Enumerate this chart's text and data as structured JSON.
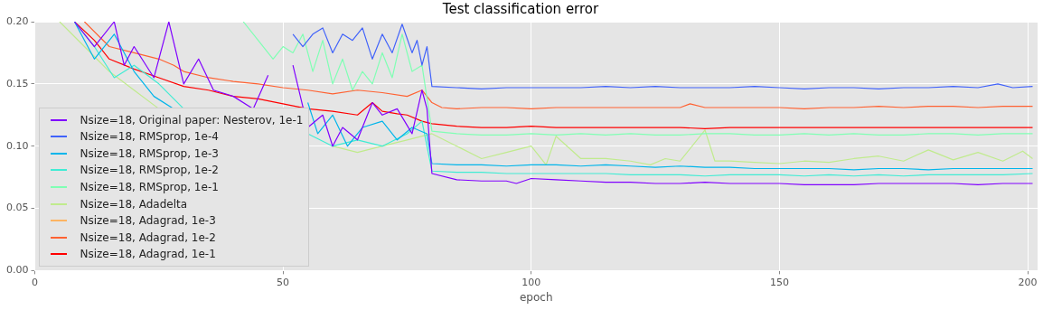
{
  "chart_data": {
    "type": "line",
    "title": "Test classification error",
    "xlabel": "epoch",
    "xlim": [
      0,
      202
    ],
    "xticks": [
      0,
      50,
      100,
      150,
      200
    ],
    "ylim": [
      0,
      0.2
    ],
    "yticks": [
      {
        "value": 0,
        "label": "0.00"
      },
      {
        "value": 0.05,
        "label": "0.05"
      },
      {
        "value": 0.1,
        "label": "0.10"
      },
      {
        "value": 0.15,
        "label": "0.15"
      },
      {
        "value": 0.2,
        "label": "0.20"
      }
    ],
    "grid": true,
    "legend": "left",
    "series": [
      {
        "name": "Nsize=18, Original paper: Nesterov, 1e-1",
        "color": "#8000ff",
        "x": [
          8,
          12,
          16,
          18,
          20,
          24,
          27,
          30,
          33,
          36,
          40,
          44,
          47,
          50,
          52,
          55,
          58,
          60,
          62,
          65,
          68,
          70,
          73,
          76,
          78,
          79,
          80,
          85,
          90,
          95,
          97,
          100,
          105,
          110,
          115,
          120,
          125,
          130,
          135,
          140,
          145,
          150,
          155,
          160,
          165,
          170,
          175,
          180,
          185,
          190,
          195,
          201
        ],
        "values": [
          0.2,
          0.18,
          0.2,
          0.165,
          0.18,
          0.155,
          0.2,
          0.15,
          0.17,
          0.145,
          0.14,
          0.13,
          0.157,
          null,
          0.165,
          0.115,
          0.125,
          0.1,
          0.115,
          0.105,
          0.135,
          0.125,
          0.13,
          0.11,
          0.145,
          0.13,
          0.078,
          0.073,
          0.072,
          0.072,
          0.07,
          0.074,
          0.073,
          0.072,
          0.071,
          0.071,
          0.07,
          0.07,
          0.071,
          0.07,
          0.07,
          0.07,
          0.069,
          0.069,
          0.069,
          0.07,
          0.07,
          0.07,
          0.07,
          0.069,
          0.07,
          0.07
        ]
      },
      {
        "name": "Nsize=18, RMSprop, 1e-4",
        "color": "#4062fa",
        "x": [
          52,
          54,
          56,
          58,
          60,
          62,
          64,
          66,
          68,
          70,
          72,
          74,
          76,
          77,
          78,
          79,
          80,
          85,
          90,
          95,
          100,
          105,
          110,
          115,
          120,
          125,
          130,
          135,
          140,
          145,
          150,
          155,
          160,
          165,
          170,
          175,
          180,
          185,
          190,
          194,
          197,
          201
        ],
        "values": [
          0.19,
          0.18,
          0.19,
          0.195,
          0.175,
          0.19,
          0.185,
          0.195,
          0.17,
          0.19,
          0.175,
          0.198,
          0.175,
          0.185,
          0.165,
          0.18,
          0.148,
          0.147,
          0.146,
          0.147,
          0.147,
          0.147,
          0.147,
          0.148,
          0.147,
          0.148,
          0.147,
          0.147,
          0.147,
          0.148,
          0.147,
          0.146,
          0.147,
          0.147,
          0.146,
          0.147,
          0.147,
          0.148,
          0.147,
          0.15,
          0.147,
          0.148
        ]
      },
      {
        "name": "Nsize=18, RMSprop, 1e-3",
        "color": "#00b5eb",
        "x": [
          8,
          12,
          16,
          20,
          24,
          28,
          30,
          35,
          40,
          45,
          50,
          52,
          55,
          57,
          60,
          63,
          66,
          70,
          73,
          76,
          79,
          80,
          85,
          90,
          95,
          100,
          105,
          110,
          115,
          120,
          125,
          130,
          135,
          140,
          145,
          150,
          155,
          160,
          165,
          170,
          175,
          180,
          185,
          190,
          195,
          201
        ],
        "values": [
          0.2,
          0.17,
          0.19,
          0.16,
          0.14,
          0.13,
          null,
          null,
          null,
          null,
          null,
          null,
          0.135,
          0.11,
          0.125,
          0.1,
          0.115,
          0.12,
          0.105,
          0.115,
          0.11,
          0.086,
          0.085,
          0.085,
          0.084,
          0.085,
          0.085,
          0.084,
          0.085,
          0.084,
          0.083,
          0.084,
          0.083,
          0.083,
          0.082,
          0.082,
          0.082,
          0.082,
          0.081,
          0.082,
          0.082,
          0.081,
          0.082,
          0.082,
          0.082,
          0.082
        ]
      },
      {
        "name": "Nsize=18, RMSprop, 1e-2",
        "color": "#40ecd4",
        "x": [
          8,
          12,
          16,
          20,
          25,
          30,
          35,
          40,
          45,
          50,
          55,
          60,
          65,
          70,
          75,
          78,
          80,
          85,
          90,
          95,
          100,
          105,
          110,
          115,
          120,
          125,
          130,
          135,
          140,
          145,
          150,
          155,
          160,
          165,
          170,
          175,
          180,
          185,
          190,
          195,
          201
        ],
        "values": [
          0.2,
          0.18,
          0.155,
          0.165,
          0.15,
          0.13,
          null,
          null,
          null,
          null,
          0.11,
          0.1,
          0.105,
          0.1,
          0.11,
          0.12,
          0.08,
          0.079,
          0.079,
          0.078,
          0.078,
          0.078,
          0.078,
          0.078,
          0.077,
          0.077,
          0.077,
          0.076,
          0.077,
          0.077,
          0.077,
          0.076,
          0.077,
          0.076,
          0.077,
          0.076,
          0.077,
          0.077,
          0.077,
          0.077,
          0.078
        ]
      },
      {
        "name": "Nsize=18, RMSprop, 1e-1",
        "color": "#80ffb4",
        "x": [
          42,
          45,
          48,
          50,
          52,
          54,
          56,
          58,
          60,
          62,
          64,
          66,
          68,
          70,
          72,
          74,
          76,
          78,
          80,
          85,
          90,
          95,
          100,
          105,
          110,
          115,
          120,
          125,
          130,
          135,
          140,
          145,
          150,
          155,
          160,
          165,
          170,
          175,
          180,
          185,
          190,
          195,
          201
        ],
        "values": [
          0.2,
          0.185,
          0.17,
          0.18,
          0.175,
          0.19,
          0.16,
          0.185,
          0.15,
          0.17,
          0.145,
          0.16,
          0.15,
          0.175,
          0.155,
          0.19,
          0.16,
          0.165,
          0.112,
          0.11,
          0.109,
          0.109,
          0.11,
          0.109,
          0.11,
          0.109,
          0.11,
          0.109,
          0.109,
          0.11,
          0.11,
          0.109,
          0.109,
          0.11,
          0.109,
          0.11,
          0.109,
          0.109,
          0.11,
          0.11,
          0.109,
          0.11,
          0.11
        ]
      },
      {
        "name": "Nsize=18, Adadelta",
        "color": "#c0eb8d",
        "x": [
          5,
          10,
          15,
          20,
          25,
          30,
          40,
          50,
          55,
          60,
          65,
          70,
          75,
          80,
          85,
          90,
          95,
          100,
          103,
          105,
          110,
          115,
          120,
          124,
          127,
          130,
          135,
          137,
          140,
          145,
          150,
          155,
          160,
          165,
          170,
          175,
          180,
          185,
          190,
          195,
          199,
          201
        ],
        "values": [
          0.2,
          0.18,
          0.16,
          0.145,
          0.13,
          null,
          null,
          null,
          null,
          0.1,
          0.095,
          0.1,
          0.105,
          0.11,
          0.1,
          0.09,
          0.095,
          0.1,
          0.085,
          0.108,
          0.09,
          0.09,
          0.088,
          0.085,
          0.09,
          0.088,
          0.113,
          0.088,
          0.088,
          0.087,
          0.086,
          0.088,
          0.087,
          0.09,
          0.092,
          0.088,
          0.097,
          0.089,
          0.095,
          0.088,
          0.096,
          0.09
        ]
      },
      {
        "name": "Nsize=18, Adagrad, 1e-3",
        "color": "#ffb462"
      },
      {
        "name": "Nsize=18, Adagrad, 1e-2",
        "color": "#ff6232",
        "x": [
          10,
          15,
          20,
          25,
          28,
          30,
          35,
          40,
          45,
          50,
          55,
          60,
          65,
          70,
          75,
          78,
          80,
          82,
          85,
          90,
          95,
          100,
          105,
          110,
          115,
          120,
          125,
          130,
          132,
          135,
          140,
          145,
          150,
          155,
          160,
          165,
          170,
          175,
          180,
          185,
          190,
          195,
          201
        ],
        "values": [
          0.2,
          0.18,
          0.175,
          0.17,
          0.165,
          0.16,
          0.155,
          0.152,
          0.15,
          0.147,
          0.145,
          0.142,
          0.145,
          0.143,
          0.14,
          0.145,
          0.135,
          0.131,
          0.13,
          0.131,
          0.131,
          0.13,
          0.131,
          0.131,
          0.131,
          0.131,
          0.131,
          0.131,
          0.134,
          0.131,
          0.131,
          0.131,
          0.131,
          0.13,
          0.131,
          0.131,
          0.132,
          0.131,
          0.132,
          0.132,
          0.131,
          0.132,
          0.132
        ]
      },
      {
        "name": "Nsize=18, Adagrad, 1e-1",
        "color": "#ff0000",
        "x": [
          8,
          12,
          15,
          20,
          25,
          30,
          35,
          40,
          45,
          50,
          55,
          60,
          65,
          68,
          70,
          73,
          75,
          78,
          80,
          85,
          90,
          95,
          100,
          105,
          110,
          115,
          120,
          125,
          130,
          135,
          140,
          145,
          150,
          155,
          160,
          165,
          170,
          175,
          180,
          185,
          190,
          195,
          201
        ],
        "values": [
          0.2,
          0.185,
          0.17,
          0.162,
          0.155,
          0.148,
          0.145,
          0.14,
          0.138,
          0.134,
          0.13,
          0.128,
          0.125,
          0.135,
          0.128,
          0.126,
          0.125,
          0.12,
          0.118,
          0.116,
          0.115,
          0.115,
          0.116,
          0.115,
          0.115,
          0.115,
          0.115,
          0.115,
          0.115,
          0.114,
          0.115,
          0.115,
          0.115,
          0.115,
          0.115,
          0.115,
          0.115,
          0.115,
          0.115,
          0.115,
          0.115,
          0.115,
          0.115
        ]
      }
    ]
  }
}
